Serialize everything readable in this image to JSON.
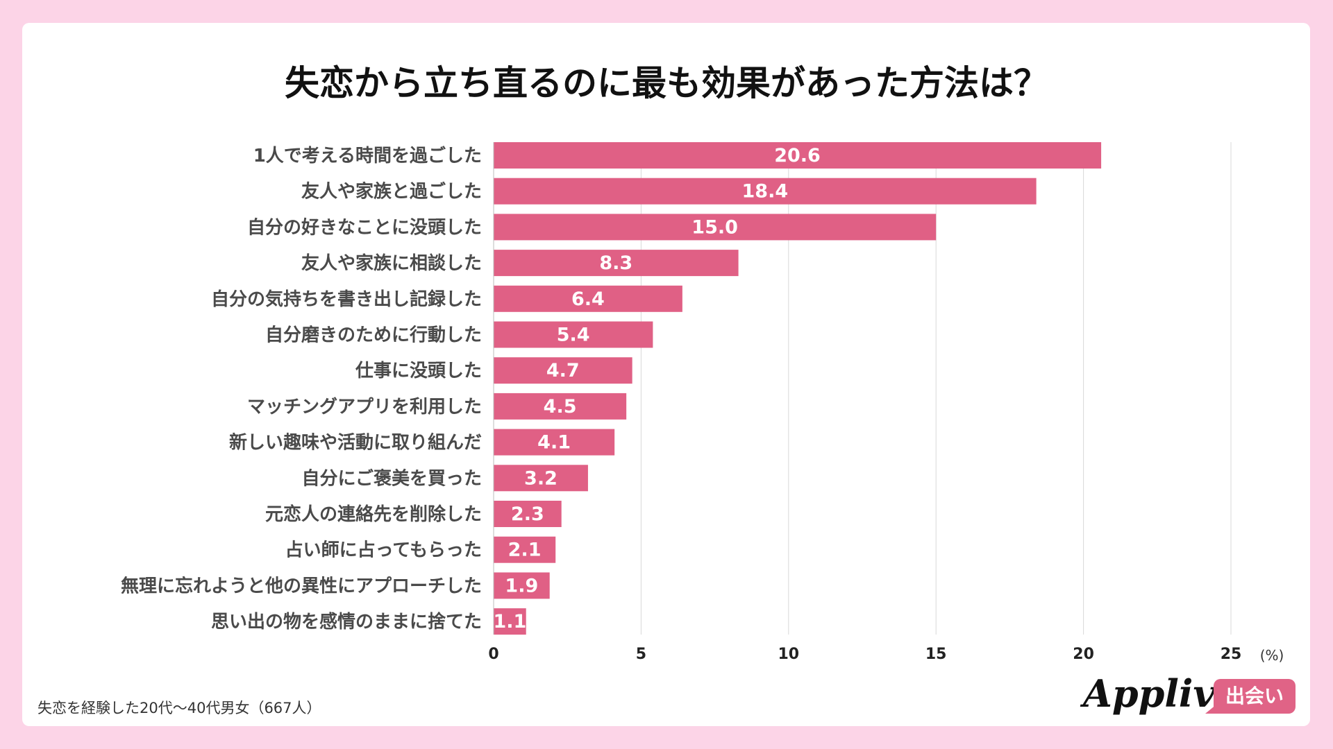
{
  "chart_data": {
    "type": "bar",
    "orientation": "horizontal",
    "title": "失恋から立ち直るのに最も効果があった方法は？",
    "categories": [
      "1人で考える時間を過ごした",
      "友人や家族と過ごした",
      "自分の好きなことに没頭した",
      "友人や家族に相談した",
      "自分の気持ちを書き出し記録した",
      "自分磨きのために行動した",
      "仕事に没頭した",
      "マッチングアプリを利用した",
      "新しい趣味や活動に取り組んだ",
      "自分にご褒美を買った",
      "元恋人の連絡先を削除した",
      "占い師に占ってもらった",
      "無理に忘れようと他の異性にアプローチした",
      "思い出の物を感情のままに捨てた"
    ],
    "values": [
      20.6,
      18.4,
      15.0,
      8.3,
      6.4,
      5.4,
      4.7,
      4.5,
      4.1,
      3.2,
      2.3,
      2.1,
      1.9,
      1.1
    ],
    "value_labels": [
      "20.6",
      "18.4",
      "15.0",
      "8.3",
      "6.4",
      "5.4",
      "4.7",
      "4.5",
      "4.1",
      "3.2",
      "2.3",
      "2.1",
      "1.9",
      "1.1"
    ],
    "xlim": [
      0,
      25
    ],
    "xticks": [
      "0",
      "5",
      "10",
      "15",
      "20",
      "25"
    ],
    "xunit": "(%)",
    "grid": true,
    "bar_color": "#e06085"
  },
  "footnote": "失恋を経験した20代〜40代男女（667人）",
  "logo": {
    "text": "Appliv",
    "badge": "出会い"
  }
}
